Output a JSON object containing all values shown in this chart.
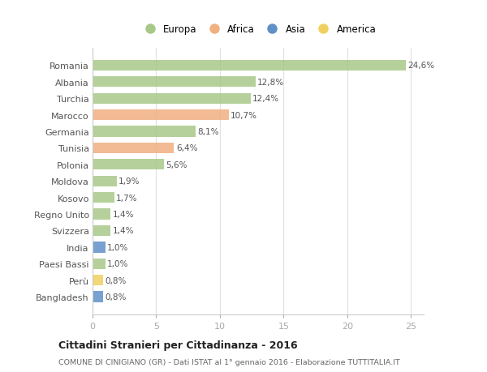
{
  "categories": [
    "Romania",
    "Albania",
    "Turchia",
    "Marocco",
    "Germania",
    "Tunisia",
    "Polonia",
    "Moldova",
    "Kosovo",
    "Regno Unito",
    "Svizzera",
    "India",
    "Paesi Bassi",
    "Perù",
    "Bangladesh"
  ],
  "values": [
    24.6,
    12.8,
    12.4,
    10.7,
    8.1,
    6.4,
    5.6,
    1.9,
    1.7,
    1.4,
    1.4,
    1.0,
    1.0,
    0.8,
    0.8
  ],
  "labels": [
    "24,6%",
    "12,8%",
    "12,4%",
    "10,7%",
    "8,1%",
    "6,4%",
    "5,6%",
    "1,9%",
    "1,7%",
    "1,4%",
    "1,4%",
    "1,0%",
    "1,0%",
    "0,8%",
    "0,8%"
  ],
  "continents": [
    "Europa",
    "Europa",
    "Europa",
    "Africa",
    "Europa",
    "Africa",
    "Europa",
    "Europa",
    "Europa",
    "Europa",
    "Europa",
    "Asia",
    "Europa",
    "America",
    "Asia"
  ],
  "continent_colors": {
    "Europa": "#a8c888",
    "Africa": "#f0b080",
    "Asia": "#6090c8",
    "America": "#f0d060"
  },
  "legend_order": [
    "Europa",
    "Africa",
    "Asia",
    "America"
  ],
  "title": "Cittadini Stranieri per Cittadinanza - 2016",
  "subtitle": "COMUNE DI CINIGIANO (GR) - Dati ISTAT al 1° gennaio 2016 - Elaborazione TUTTITALIA.IT",
  "xlim": [
    0,
    26
  ],
  "xticks": [
    0,
    5,
    10,
    15,
    20,
    25
  ],
  "background_color": "#ffffff",
  "grid_color": "#e0e0e0",
  "bar_height": 0.65
}
